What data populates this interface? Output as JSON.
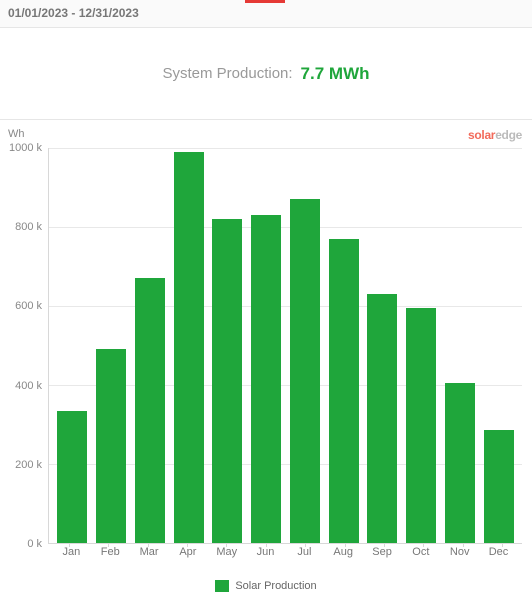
{
  "date_range": "01/01/2023 - 12/31/2023",
  "summary": {
    "label": "System Production:",
    "value": "7.7 MWh",
    "value_color": "#1fa63b"
  },
  "brand": {
    "part1": "solar",
    "part2": "edge"
  },
  "chart": {
    "type": "bar",
    "y_unit": "Wh",
    "ylim": [
      0,
      1000
    ],
    "ytick_step": 200,
    "y_ticks": [
      0,
      200,
      400,
      600,
      800,
      1000
    ],
    "y_tick_labels": [
      "0 k",
      "200 k",
      "400 k",
      "600 k",
      "800 k",
      "1000 k"
    ],
    "grid_color": "#e8e8e8",
    "axis_color": "#d8d8d8",
    "background_color": "#ffffff",
    "bar_color": "#1fa63b",
    "bar_width": 0.78,
    "label_fontsize": 11,
    "categories": [
      "Jan",
      "Feb",
      "Mar",
      "Apr",
      "May",
      "Jun",
      "Jul",
      "Aug",
      "Sep",
      "Oct",
      "Nov",
      "Dec"
    ],
    "values": [
      335,
      490,
      670,
      990,
      820,
      830,
      870,
      770,
      630,
      595,
      405,
      285
    ],
    "legend": {
      "label": "Solar Production",
      "color": "#1fa63b"
    }
  }
}
